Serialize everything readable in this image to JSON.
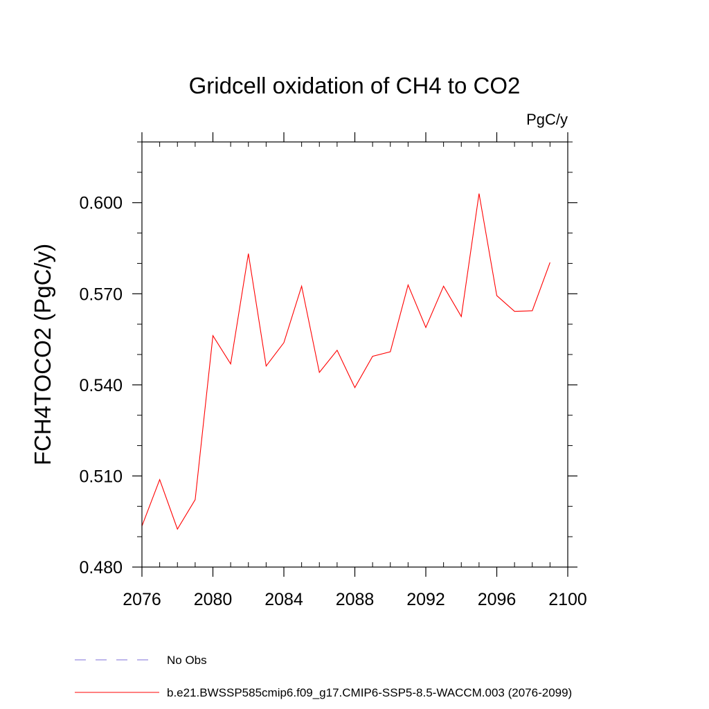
{
  "chart_data": {
    "type": "line",
    "title": "Gridcell oxidation of CH4 to CO2",
    "units": "PgC/y",
    "xlabel": "",
    "ylabel": "FCH4TOCO2  (PgC/y)",
    "xlim": [
      2076,
      2100
    ],
    "ylim": [
      0.48,
      0.62
    ],
    "xticks": [
      2076,
      2080,
      2084,
      2088,
      2092,
      2096,
      2100
    ],
    "yticks": [
      0.48,
      0.51,
      0.54,
      0.57,
      0.6
    ],
    "ytick_labels": [
      "0.480",
      "0.510",
      "0.540",
      "0.570",
      "0.600"
    ],
    "x_minor_step": 1,
    "y_minor_step": 0.01,
    "series": [
      {
        "name": "b.e21.BWSSP585cmip6.f09_g17.CMIP6-SSP5-8.5-WACCM.003 (2076-2099)",
        "color": "#ff0000",
        "x": [
          2076,
          2077,
          2078,
          2079,
          2080,
          2081,
          2082,
          2083,
          2084,
          2085,
          2086,
          2087,
          2088,
          2089,
          2090,
          2091,
          2092,
          2093,
          2094,
          2095,
          2096,
          2097,
          2098,
          2099
        ],
        "values": [
          0.4935,
          0.5088,
          0.4925,
          0.5022,
          0.5562,
          0.5469,
          0.5832,
          0.5462,
          0.5539,
          0.5725,
          0.5441,
          0.5514,
          0.5391,
          0.5494,
          0.5509,
          0.5729,
          0.5589,
          0.5725,
          0.5625,
          0.603,
          0.5694,
          0.5642,
          0.5644,
          0.5803
        ]
      }
    ],
    "legend": [
      {
        "label": "No Obs",
        "style": "dashed",
        "color": "#7c6fd9"
      },
      {
        "label": "b.e21.BWSSP585cmip6.f09_g17.CMIP6-SSP5-8.5-WACCM.003 (2076-2099)",
        "style": "solid",
        "color": "#ff0000"
      }
    ],
    "legend_position": "bottom-left"
  }
}
